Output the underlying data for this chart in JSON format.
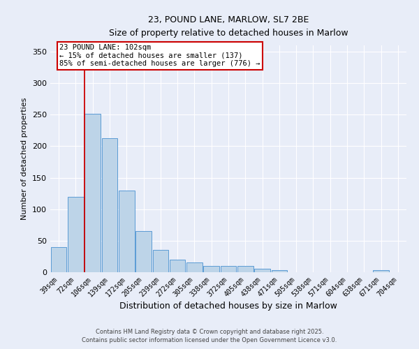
{
  "title_line1": "23, POUND LANE, MARLOW, SL7 2BE",
  "title_line2": "Size of property relative to detached houses in Marlow",
  "xlabel": "Distribution of detached houses by size in Marlow",
  "ylabel": "Number of detached properties",
  "categories": [
    "39sqm",
    "72sqm",
    "106sqm",
    "139sqm",
    "172sqm",
    "205sqm",
    "239sqm",
    "272sqm",
    "305sqm",
    "338sqm",
    "372sqm",
    "405sqm",
    "438sqm",
    "471sqm",
    "505sqm",
    "538sqm",
    "571sqm",
    "604sqm",
    "638sqm",
    "671sqm",
    "704sqm"
  ],
  "values": [
    40,
    120,
    252,
    213,
    130,
    65,
    35,
    20,
    15,
    10,
    10,
    10,
    5,
    3,
    0,
    0,
    0,
    0,
    0,
    3,
    0
  ],
  "bar_color": "#bdd4e8",
  "bar_edge_color": "#5b9bd5",
  "red_line_color": "#cc0000",
  "ylim": [
    0,
    360
  ],
  "yticks": [
    0,
    50,
    100,
    150,
    200,
    250,
    300,
    350
  ],
  "background_color": "#e8edf8",
  "grid_color": "#ffffff",
  "annotation_text_line1": "23 POUND LANE: 102sqm",
  "annotation_text_line2": "← 15% of detached houses are smaller (137)",
  "annotation_text_line3": "85% of semi-detached houses are larger (776) →",
  "footer_line1": "Contains HM Land Registry data © Crown copyright and database right 2025.",
  "footer_line2": "Contains public sector information licensed under the Open Government Licence v3.0."
}
